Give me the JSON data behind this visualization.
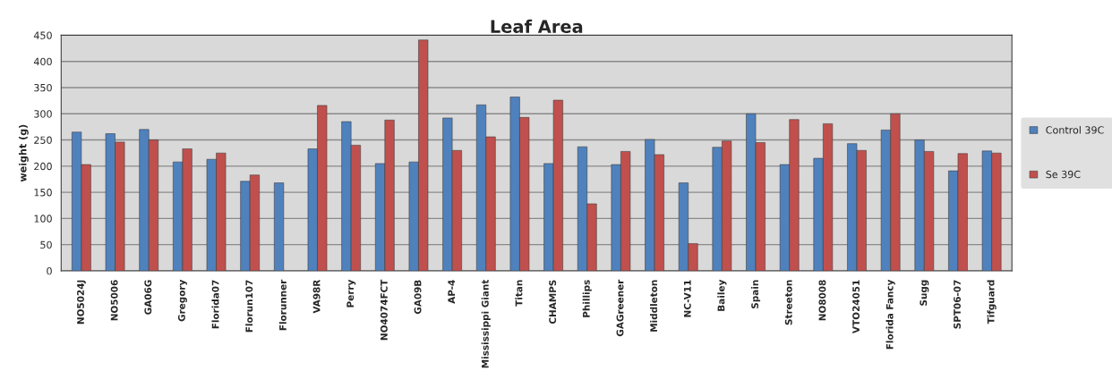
{
  "chart_data": {
    "type": "bar",
    "title": "Leaf Area",
    "ylabel": "weight (g)",
    "categories": [
      "NO5024J",
      "NO5006",
      "GA06G",
      "Gregory",
      "Florida07",
      "Florun107",
      "Florunner",
      "VA98R",
      "Perry",
      "NO4074FCT",
      "GA09B",
      "AP-4",
      "Mississippi Giant",
      "Titan",
      "CHAMPS",
      "Phillips",
      "GAGreener",
      "Middleton",
      "NC-V11",
      "Bailey",
      "Spain",
      "Streeton",
      "NO8008",
      "VTO24051",
      "Florida Fancy",
      "Sugg",
      "SPT06-07",
      "Tifguard"
    ],
    "series": [
      {
        "name": "Control 39C",
        "color": "#4f81bd",
        "values": [
          265,
          262,
          270,
          208,
          213,
          171,
          168,
          233,
          285,
          205,
          208,
          292,
          317,
          332,
          205,
          237,
          203,
          251,
          168,
          236,
          300,
          203,
          215,
          243,
          269,
          250,
          191,
          229
        ]
      },
      {
        "name": "Se 39C",
        "color": "#c0504d",
        "values": [
          203,
          246,
          250,
          233,
          225,
          183,
          null,
          316,
          240,
          288,
          441,
          230,
          256,
          293,
          326,
          128,
          228,
          222,
          52,
          248,
          245,
          289,
          281,
          230,
          300,
          228,
          224,
          225
        ]
      }
    ],
    "ylim": [
      0,
      450
    ],
    "yticks": [
      0,
      50,
      100,
      150,
      200,
      250,
      300,
      350,
      400,
      450
    ],
    "grid": "y",
    "legend": "right"
  }
}
